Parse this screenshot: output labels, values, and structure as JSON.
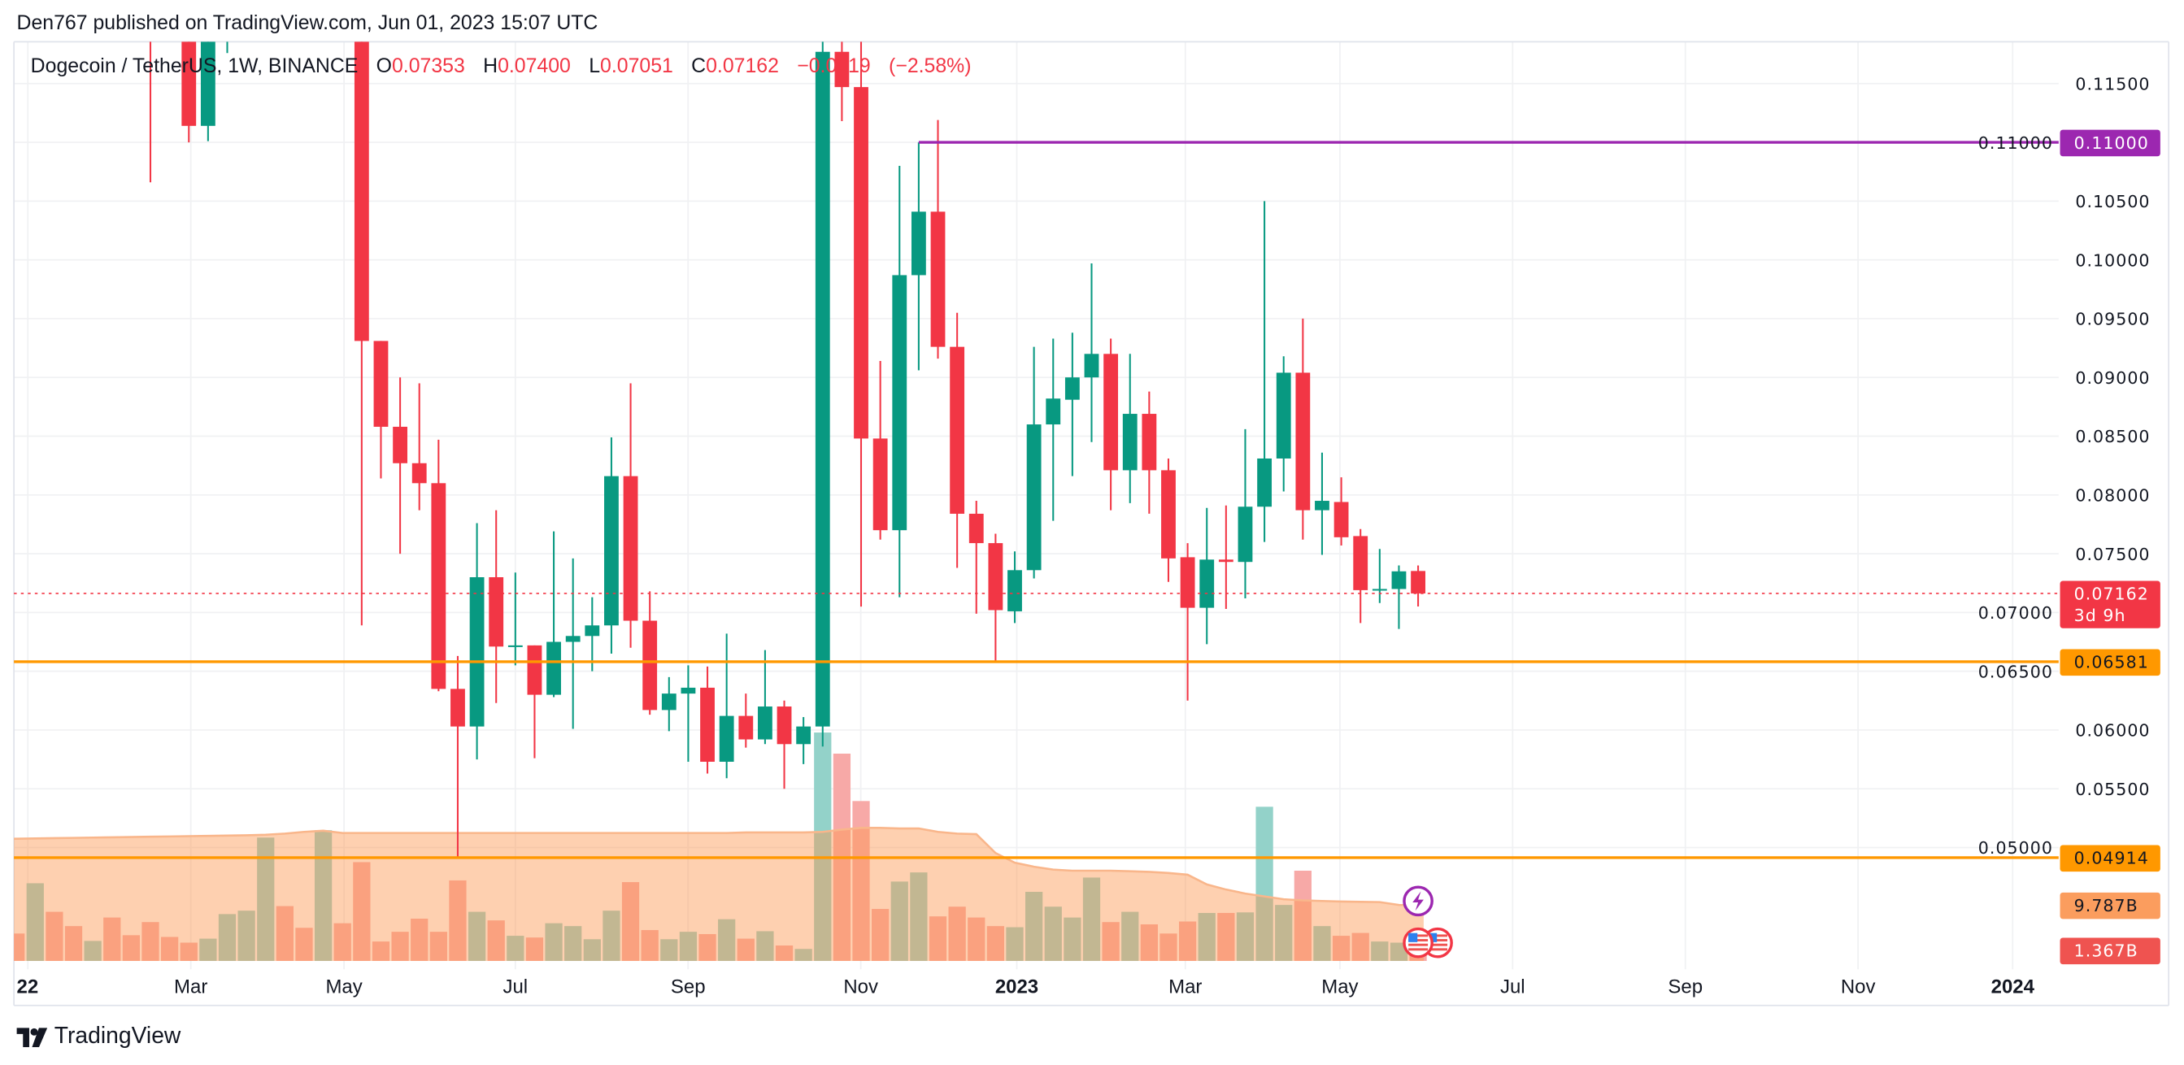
{
  "header": {
    "published": "Den767 published on TradingView.com, Jun 01, 2023 15:07 UTC"
  },
  "legend": {
    "symbol": "Dogecoin / TetherUS, 1W, BINANCE",
    "open_label": "O",
    "open": "0.07353",
    "high_label": "H",
    "high": "0.07400",
    "low_label": "L",
    "low": "0.07051",
    "close_label": "C",
    "close": "0.07162",
    "change": "−0.0019",
    "change_pct": "(−2.58%)"
  },
  "price_axis": {
    "ticks": [
      "0.11500",
      "0.11000",
      "0.10500",
      "0.10000",
      "0.09500",
      "0.09000",
      "0.08500",
      "0.08000",
      "0.07500",
      "0.07000",
      "0.06500",
      "0.06000",
      "0.05500",
      "0.05000"
    ],
    "labels": [
      {
        "text": "0.11000",
        "sub": "",
        "price": 0.11,
        "color": "#9c27b0",
        "text_color": "#ffffff",
        "name": "resistance-price-label"
      },
      {
        "text": "0.07162",
        "sub": "3d 9h",
        "price": 0.07162,
        "color": "#f23645",
        "text_color": "#ffffff",
        "name": "last-price-label"
      },
      {
        "text": "0.06581",
        "sub": "",
        "price": 0.06581,
        "color": "#ff9800",
        "text_color": "#131722",
        "name": "support-price-label"
      },
      {
        "text": "0.04914",
        "sub": "",
        "price": 0.04914,
        "color": "#ff9800",
        "text_color": "#131722",
        "name": "support-low-price-label"
      }
    ],
    "volume_labels": [
      {
        "text": "9.787B",
        "value": 9.787,
        "color": "#fb9d5e",
        "text_color": "#131722",
        "name": "volume-ma-label"
      },
      {
        "text": "1.367B",
        "value": 1.367,
        "color": "#ef5350",
        "text_color": "#ffffff",
        "name": "volume-last-label"
      }
    ]
  },
  "time_axis": {
    "labels": [
      "22",
      "Mar",
      "May",
      "Jul",
      "Sep",
      "Nov",
      "2023",
      "Mar",
      "May",
      "Jul",
      "Sep",
      "Nov",
      "2024"
    ],
    "bold": [
      "22",
      "2023",
      "2024"
    ]
  },
  "levels": [
    {
      "price": 0.11,
      "color": "#9c27b0",
      "style": "solid",
      "from_bar": 47
    },
    {
      "price": 0.06581,
      "color": "#ff9800",
      "style": "solid"
    },
    {
      "price": 0.04914,
      "color": "#ff9800",
      "style": "solid"
    },
    {
      "price": 0.07162,
      "color": "#f23645",
      "style": "dotted"
    }
  ],
  "events": [
    {
      "icon": "lightning-icon",
      "color": "#9c27b0"
    },
    {
      "icon": "us-flag-icon",
      "color": "#f23645"
    },
    {
      "icon": "us-flag-icon",
      "color": "#f23645"
    }
  ],
  "colors": {
    "up": "#089981",
    "down": "#f23645",
    "vol_up": "#93d2c9",
    "vol_down": "#f7a9a7",
    "vol_ma_fill": "rgba(252,150,80,0.45)",
    "vol_ma_line": "#f9b68b",
    "grid": "#f0f1f3"
  },
  "logo": {
    "text": "TradingView"
  },
  "chart_data": {
    "type": "candlestick",
    "symbol": "Dogecoin / TetherUS",
    "interval": "1W",
    "exchange": "BINANCE",
    "ylim": [
      0.0475,
      0.1186
    ],
    "grid": true,
    "candles": [
      null,
      null,
      null,
      null,
      null,
      null,
      null,
      {
        "o": 0.13,
        "h": 0.135,
        "l": 0.1066,
        "c": 0.123
      },
      null,
      {
        "o": 0.122,
        "h": 0.125,
        "l": 0.11,
        "c": 0.1114
      },
      {
        "o": 0.1114,
        "h": 0.123,
        "l": 0.1101,
        "c": 0.121
      },
      {
        "o": 0.121,
        "h": 0.13,
        "l": 0.1176,
        "c": 0.128
      },
      null,
      null,
      null,
      null,
      null,
      null,
      {
        "o": 0.131,
        "h": 0.135,
        "l": 0.0689,
        "c": 0.0931
      },
      {
        "o": 0.0931,
        "h": 0.0931,
        "l": 0.0814,
        "c": 0.0858
      },
      {
        "o": 0.0858,
        "h": 0.09,
        "l": 0.075,
        "c": 0.0827
      },
      {
        "o": 0.0827,
        "h": 0.0895,
        "l": 0.0787,
        "c": 0.081
      },
      {
        "o": 0.081,
        "h": 0.0847,
        "l": 0.0633,
        "c": 0.0635
      },
      {
        "o": 0.0635,
        "h": 0.0663,
        "l": 0.0491,
        "c": 0.0603
      },
      {
        "o": 0.0603,
        "h": 0.0776,
        "l": 0.0575,
        "c": 0.073
      },
      {
        "o": 0.073,
        "h": 0.0787,
        "l": 0.0623,
        "c": 0.0671
      },
      {
        "o": 0.0671,
        "h": 0.0734,
        "l": 0.0655,
        "c": 0.0672
      },
      {
        "o": 0.0672,
        "h": 0.0672,
        "l": 0.0576,
        "c": 0.063
      },
      {
        "o": 0.063,
        "h": 0.0769,
        "l": 0.0628,
        "c": 0.0675
      },
      {
        "o": 0.0675,
        "h": 0.0746,
        "l": 0.0601,
        "c": 0.068
      },
      {
        "o": 0.068,
        "h": 0.0713,
        "l": 0.065,
        "c": 0.0689
      },
      {
        "o": 0.0689,
        "h": 0.0849,
        "l": 0.0665,
        "c": 0.0816
      },
      {
        "o": 0.0816,
        "h": 0.0895,
        "l": 0.067,
        "c": 0.0693
      },
      {
        "o": 0.0693,
        "h": 0.0718,
        "l": 0.0613,
        "c": 0.0617
      },
      {
        "o": 0.0617,
        "h": 0.0645,
        "l": 0.0599,
        "c": 0.0631
      },
      {
        "o": 0.0631,
        "h": 0.0655,
        "l": 0.0573,
        "c": 0.0636
      },
      {
        "o": 0.0636,
        "h": 0.0654,
        "l": 0.0563,
        "c": 0.0573
      },
      {
        "o": 0.0573,
        "h": 0.0682,
        "l": 0.0559,
        "c": 0.0612
      },
      {
        "o": 0.0612,
        "h": 0.0631,
        "l": 0.0585,
        "c": 0.0592
      },
      {
        "o": 0.0592,
        "h": 0.0668,
        "l": 0.0588,
        "c": 0.062
      },
      {
        "o": 0.062,
        "h": 0.0625,
        "l": 0.055,
        "c": 0.0588
      },
      {
        "o": 0.0588,
        "h": 0.0611,
        "l": 0.0571,
        "c": 0.0603
      },
      {
        "o": 0.0603,
        "h": 0.1195,
        "l": 0.0586,
        "c": 0.1177
      },
      {
        "o": 0.1177,
        "h": 0.12,
        "l": 0.1118,
        "c": 0.1147
      },
      {
        "o": 0.1147,
        "h": 0.1195,
        "l": 0.0705,
        "c": 0.0848
      },
      {
        "o": 0.0848,
        "h": 0.0914,
        "l": 0.0762,
        "c": 0.077
      },
      {
        "o": 0.077,
        "h": 0.108,
        "l": 0.0713,
        "c": 0.0987
      },
      {
        "o": 0.0987,
        "h": 0.11,
        "l": 0.0906,
        "c": 0.1041
      },
      {
        "o": 0.1041,
        "h": 0.1119,
        "l": 0.0916,
        "c": 0.0926
      },
      {
        "o": 0.0926,
        "h": 0.0955,
        "l": 0.0738,
        "c": 0.0784
      },
      {
        "o": 0.0784,
        "h": 0.0795,
        "l": 0.0699,
        "c": 0.0759
      },
      {
        "o": 0.0759,
        "h": 0.0767,
        "l": 0.0658,
        "c": 0.0702
      },
      {
        "o": 0.0701,
        "h": 0.0752,
        "l": 0.0691,
        "c": 0.0736
      },
      {
        "o": 0.0736,
        "h": 0.0926,
        "l": 0.0729,
        "c": 0.086
      },
      {
        "o": 0.086,
        "h": 0.0933,
        "l": 0.0778,
        "c": 0.0882
      },
      {
        "o": 0.0881,
        "h": 0.0938,
        "l": 0.0816,
        "c": 0.09
      },
      {
        "o": 0.09,
        "h": 0.0997,
        "l": 0.0845,
        "c": 0.092
      },
      {
        "o": 0.092,
        "h": 0.0933,
        "l": 0.0787,
        "c": 0.0821
      },
      {
        "o": 0.0821,
        "h": 0.092,
        "l": 0.0793,
        "c": 0.0869
      },
      {
        "o": 0.0869,
        "h": 0.0888,
        "l": 0.0784,
        "c": 0.0821
      },
      {
        "o": 0.0821,
        "h": 0.0831,
        "l": 0.0726,
        "c": 0.0746
      },
      {
        "o": 0.0747,
        "h": 0.0759,
        "l": 0.0625,
        "c": 0.0704
      },
      {
        "o": 0.0704,
        "h": 0.0789,
        "l": 0.0673,
        "c": 0.0745
      },
      {
        "o": 0.0745,
        "h": 0.0791,
        "l": 0.0703,
        "c": 0.0743
      },
      {
        "o": 0.0743,
        "h": 0.0856,
        "l": 0.0712,
        "c": 0.079
      },
      {
        "o": 0.079,
        "h": 0.105,
        "l": 0.076,
        "c": 0.0831
      },
      {
        "o": 0.0831,
        "h": 0.0918,
        "l": 0.0803,
        "c": 0.0904
      },
      {
        "o": 0.0904,
        "h": 0.095,
        "l": 0.0762,
        "c": 0.0787
      },
      {
        "o": 0.0787,
        "h": 0.0836,
        "l": 0.0749,
        "c": 0.0795
      },
      {
        "o": 0.0794,
        "h": 0.0815,
        "l": 0.0757,
        "c": 0.0764
      },
      {
        "o": 0.0765,
        "h": 0.0771,
        "l": 0.0691,
        "c": 0.0719
      },
      {
        "o": 0.0719,
        "h": 0.0754,
        "l": 0.0708,
        "c": 0.072
      },
      {
        "o": 0.072,
        "h": 0.074,
        "l": 0.0686,
        "c": 0.0735
      },
      {
        "o": 0.07353,
        "h": 0.074,
        "l": 0.07051,
        "c": 0.07162
      }
    ],
    "volume_unit": "B",
    "volume": [
      4.8,
      13.6,
      8.6,
      6.1,
      3.5,
      7.6,
      4.5,
      6.8,
      4.2,
      3.2,
      3.9,
      8.2,
      8.8,
      21.6,
      9.6,
      5.8,
      22.9,
      6.6,
      17.3,
      3.4,
      5.1,
      7.4,
      5.1,
      14.1,
      8.6,
      7.1,
      4.4,
      4.1,
      6.6,
      6.1,
      3.8,
      8.8,
      13.8,
      5.4,
      3.8,
      5.1,
      4.7,
      7.3,
      3.9,
      5.2,
      2.7,
      2.1,
      40.0,
      36.3,
      28.0,
      9.1,
      13.9,
      15.5,
      7.8,
      9.5,
      7.6,
      6.1,
      5.9,
      12.1,
      9.5,
      7.6,
      14.6,
      6.8,
      8.6,
      6.4,
      4.8,
      6.9,
      8.4,
      8.4,
      8.5,
      27.0,
      9.8,
      15.8,
      6.1,
      4.4,
      4.9,
      3.4,
      3.2,
      1.367
    ],
    "volume_dir": [
      "down",
      "up",
      "down",
      "down",
      "up",
      "down",
      "down",
      "down",
      "down",
      "down",
      "up",
      "up",
      "up",
      "up",
      "down",
      "down",
      "up",
      "down",
      "down",
      "down",
      "down",
      "down",
      "down",
      "down",
      "up",
      "down",
      "up",
      "down",
      "up",
      "up",
      "up",
      "up",
      "down",
      "down",
      "up",
      "up",
      "down",
      "up",
      "down",
      "up",
      "down",
      "up",
      "up",
      "down",
      "down",
      "down",
      "up",
      "up",
      "down",
      "down",
      "down",
      "down",
      "up",
      "up",
      "up",
      "up",
      "up",
      "down",
      "up",
      "down",
      "down",
      "down",
      "up",
      "down",
      "up",
      "up",
      "up",
      "down",
      "up",
      "down",
      "down",
      "up",
      "up",
      "down"
    ],
    "volume_ma": [
      21.4,
      21.45,
      21.5,
      21.55,
      21.6,
      21.65,
      21.7,
      21.75,
      21.8,
      21.85,
      21.9,
      21.95,
      22.0,
      22.1,
      22.3,
      22.6,
      22.8,
      22.4,
      22.4,
      22.4,
      22.4,
      22.4,
      22.4,
      22.4,
      22.4,
      22.4,
      22.4,
      22.4,
      22.4,
      22.4,
      22.4,
      22.4,
      22.4,
      22.4,
      22.4,
      22.4,
      22.4,
      22.4,
      22.5,
      22.5,
      22.5,
      22.5,
      22.6,
      23.0,
      23.3,
      23.3,
      23.2,
      23.2,
      22.6,
      22.3,
      22.2,
      18.9,
      17.2,
      16.5,
      16.0,
      15.8,
      15.8,
      15.8,
      15.7,
      15.6,
      15.4,
      15.1,
      13.4,
      12.5,
      11.8,
      11.3,
      10.8,
      10.6,
      10.5,
      10.4,
      10.35,
      10.3,
      9.8,
      9.787
    ]
  }
}
